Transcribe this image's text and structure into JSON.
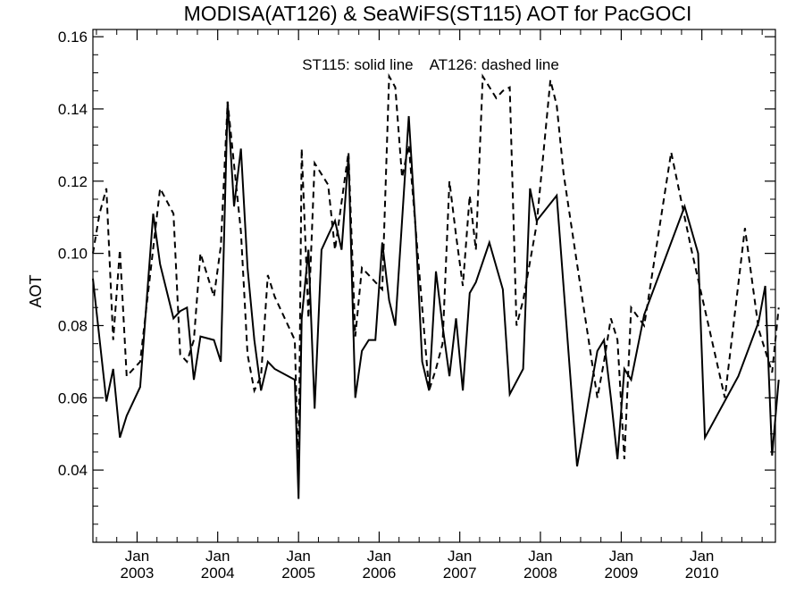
{
  "chart_data": {
    "type": "line",
    "title": "MODISA(AT126) & SeaWiFS(ST115)  AOT for PacGOCI",
    "xlabel": "",
    "ylabel": "AOT",
    "annotation": "ST115: solid line    AT126: dashed line",
    "xlim": [
      "2002-06-15",
      "2010-11-30"
    ],
    "ylim": [
      0.02,
      0.162
    ],
    "y_ticks": [
      0.04,
      0.06,
      0.08,
      0.1,
      0.12,
      0.14,
      0.16
    ],
    "y_tick_labels": [
      "0.04",
      "0.06",
      "0.08",
      "0.10",
      "0.12",
      "0.14",
      "0.16"
    ],
    "x_ticks": [
      "2003-01-01",
      "2004-01-01",
      "2005-01-01",
      "2006-01-01",
      "2007-01-01",
      "2008-01-01",
      "2009-01-01",
      "2010-01-01"
    ],
    "x_tick_month": "Jan",
    "x_tick_years": [
      "2003",
      "2004",
      "2005",
      "2006",
      "2007",
      "2008",
      "2009",
      "2010"
    ],
    "grid": false,
    "series": [
      {
        "name": "ST115",
        "style": "solid",
        "color": "#000000",
        "x": [
          "2002-06-15",
          "2002-08-15",
          "2002-09-15",
          "2002-10-15",
          "2002-11-15",
          "2003-01-15",
          "2003-03-15",
          "2003-04-15",
          "2003-06-15",
          "2003-07-15",
          "2003-08-15",
          "2003-09-15",
          "2003-10-15",
          "2003-12-15",
          "2004-01-15",
          "2004-02-15",
          "2004-03-15",
          "2004-04-15",
          "2004-05-15",
          "2004-06-15",
          "2004-07-15",
          "2004-08-15",
          "2004-09-15",
          "2004-12-15",
          "2005-01-01",
          "2005-01-15",
          "2005-02-15",
          "2005-03-15",
          "2005-04-15",
          "2005-05-15",
          "2005-06-15",
          "2005-07-15",
          "2005-08-15",
          "2005-09-15",
          "2005-10-15",
          "2005-11-15",
          "2005-12-15",
          "2006-01-15",
          "2006-02-15",
          "2006-03-15",
          "2006-05-15",
          "2006-06-15",
          "2006-07-15",
          "2006-08-15",
          "2006-09-15",
          "2006-10-15",
          "2006-11-15",
          "2006-12-15",
          "2007-01-15",
          "2007-02-15",
          "2007-03-15",
          "2007-05-15",
          "2007-07-15",
          "2007-08-15",
          "2007-10-15",
          "2007-11-15",
          "2007-12-15",
          "2008-03-15",
          "2008-06-15",
          "2008-09-15",
          "2008-10-15",
          "2008-11-15",
          "2008-12-15",
          "2009-01-15",
          "2009-02-15",
          "2009-04-15",
          "2009-10-15",
          "2009-12-15",
          "2010-01-15",
          "2010-06-15",
          "2010-09-15",
          "2010-10-15",
          "2010-11-15",
          "2010-12-15"
        ],
        "values": [
          0.093,
          0.059,
          0.068,
          0.049,
          0.055,
          0.063,
          0.111,
          0.097,
          0.082,
          0.084,
          0.085,
          0.065,
          0.077,
          0.076,
          0.07,
          0.142,
          0.113,
          0.129,
          0.096,
          0.076,
          0.062,
          0.07,
          0.068,
          0.065,
          0.032,
          0.082,
          0.101,
          0.057,
          0.101,
          0.105,
          0.109,
          0.101,
          0.127,
          0.06,
          0.073,
          0.076,
          0.076,
          0.103,
          0.087,
          0.08,
          0.138,
          0.107,
          0.07,
          0.062,
          0.095,
          0.08,
          0.066,
          0.082,
          0.062,
          0.089,
          0.092,
          0.103,
          0.09,
          0.061,
          0.068,
          0.118,
          0.109,
          0.116,
          0.041,
          0.073,
          0.076,
          0.06,
          0.043,
          0.068,
          0.065,
          0.083,
          0.113,
          0.1,
          0.049,
          0.066,
          0.081,
          0.091,
          0.044,
          0.065
        ]
      },
      {
        "name": "AT126",
        "style": "dashed",
        "color": "#000000",
        "x": [
          "2002-06-15",
          "2002-07-15",
          "2002-08-15",
          "2002-09-15",
          "2002-10-15",
          "2002-11-15",
          "2003-01-15",
          "2003-04-15",
          "2003-06-15",
          "2003-07-15",
          "2003-08-15",
          "2003-09-15",
          "2003-10-15",
          "2003-12-15",
          "2004-01-15",
          "2004-02-15",
          "2004-04-15",
          "2004-05-15",
          "2004-06-15",
          "2004-07-15",
          "2004-08-15",
          "2004-09-15",
          "2004-12-15",
          "2005-01-01",
          "2005-01-15",
          "2005-02-15",
          "2005-03-15",
          "2005-05-15",
          "2005-06-15",
          "2005-08-15",
          "2005-09-15",
          "2005-10-15",
          "2005-11-15",
          "2006-01-15",
          "2006-02-15",
          "2006-03-15",
          "2006-04-15",
          "2006-05-15",
          "2006-07-15",
          "2006-08-15",
          "2006-09-15",
          "2006-10-15",
          "2006-11-15",
          "2006-12-15",
          "2007-01-15",
          "2007-02-15",
          "2007-03-15",
          "2007-04-15",
          "2007-06-15",
          "2007-07-15",
          "2007-08-15",
          "2007-09-15",
          "2007-10-15",
          "2007-12-15",
          "2008-02-15",
          "2008-03-15",
          "2008-04-15",
          "2008-06-15",
          "2008-09-15",
          "2008-10-15",
          "2008-11-15",
          "2008-12-15",
          "2009-01-15",
          "2009-02-15",
          "2009-04-15",
          "2009-08-15",
          "2009-10-15",
          "2009-11-15",
          "2010-04-15",
          "2010-07-15",
          "2010-09-15",
          "2010-11-15",
          "2010-12-15"
        ],
        "values": [
          0.1,
          0.111,
          0.118,
          0.076,
          0.101,
          0.066,
          0.07,
          0.118,
          0.111,
          0.072,
          0.07,
          0.076,
          0.1,
          0.088,
          0.102,
          0.142,
          0.106,
          0.072,
          0.062,
          0.066,
          0.094,
          0.088,
          0.076,
          0.037,
          0.129,
          0.082,
          0.125,
          0.119,
          0.101,
          0.128,
          0.077,
          0.096,
          0.094,
          0.09,
          0.149,
          0.146,
          0.121,
          0.13,
          0.085,
          0.062,
          0.068,
          0.075,
          0.12,
          0.105,
          0.091,
          0.116,
          0.101,
          0.149,
          0.143,
          0.145,
          0.146,
          0.08,
          0.087,
          0.108,
          0.148,
          0.141,
          0.122,
          0.097,
          0.06,
          0.07,
          0.082,
          0.076,
          0.043,
          0.085,
          0.08,
          0.128,
          0.11,
          0.101,
          0.06,
          0.107,
          0.079,
          0.067,
          0.085
        ]
      }
    ]
  }
}
